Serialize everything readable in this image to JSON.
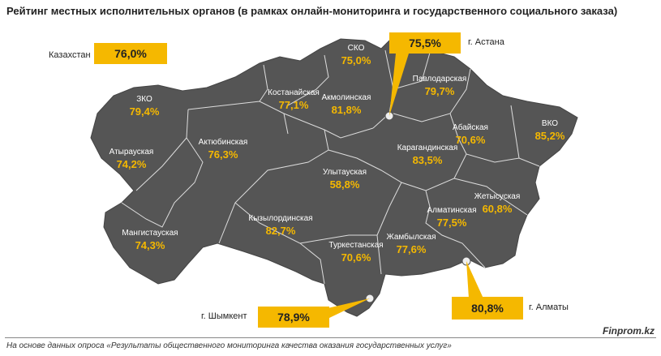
{
  "title": "Рейтинг местных исполнительных органов (в рамках онлайн-мониторинга и государственного социального заказа)",
  "country": {
    "label": "Казахстан",
    "value": "76,0%"
  },
  "regions": [
    {
      "id": "sko",
      "name": "СКО",
      "value": "75,0%"
    },
    {
      "id": "zko",
      "name": "ЗКО",
      "value": "79,4%"
    },
    {
      "id": "kostanay",
      "name": "Костанайская",
      "value": "77,1%"
    },
    {
      "id": "akmola",
      "name": "Акмолинская",
      "value": "81,8%"
    },
    {
      "id": "pavlodar",
      "name": "Павлодарская",
      "value": "79,7%"
    },
    {
      "id": "vko",
      "name": "ВКО",
      "value": "85,2%"
    },
    {
      "id": "abay",
      "name": "Абайская",
      "value": "70,6%"
    },
    {
      "id": "atyrau",
      "name": "Атырауская",
      "value": "74,2%"
    },
    {
      "id": "aktobe",
      "name": "Актюбинская",
      "value": "76,3%"
    },
    {
      "id": "karaganda",
      "name": "Карагандинская",
      "value": "83,5%"
    },
    {
      "id": "ulytau",
      "name": "Улытауская",
      "value": "58,8%"
    },
    {
      "id": "zhetysu",
      "name": "Жетысуская",
      "value": "60,8%"
    },
    {
      "id": "almaty-reg",
      "name": "Алматинская",
      "value": "77,5%"
    },
    {
      "id": "mangystau",
      "name": "Мангистауская",
      "value": "74,3%"
    },
    {
      "id": "kyzylorda",
      "name": "Кызылординская",
      "value": "82,7%"
    },
    {
      "id": "zhambyl",
      "name": "Жамбылская",
      "value": "77,6%"
    },
    {
      "id": "turkestan",
      "name": "Туркестанская",
      "value": "70,6%"
    }
  ],
  "cities": [
    {
      "id": "astana",
      "name": "г. Астана",
      "value": "75,5%"
    },
    {
      "id": "shymkent",
      "name": "г. Шымкент",
      "value": "78,9%"
    },
    {
      "id": "almaty",
      "name": "г. Алматы",
      "value": "80,8%"
    }
  ],
  "source": "На основе данных опроса «Результаты общественного мониторинга качества оказания государственных услуг»",
  "brand": "Finprom.kz",
  "colors": {
    "land": "#555555",
    "border": "#dddddd",
    "value": "#f5b800",
    "name_text": "#ffffff"
  }
}
